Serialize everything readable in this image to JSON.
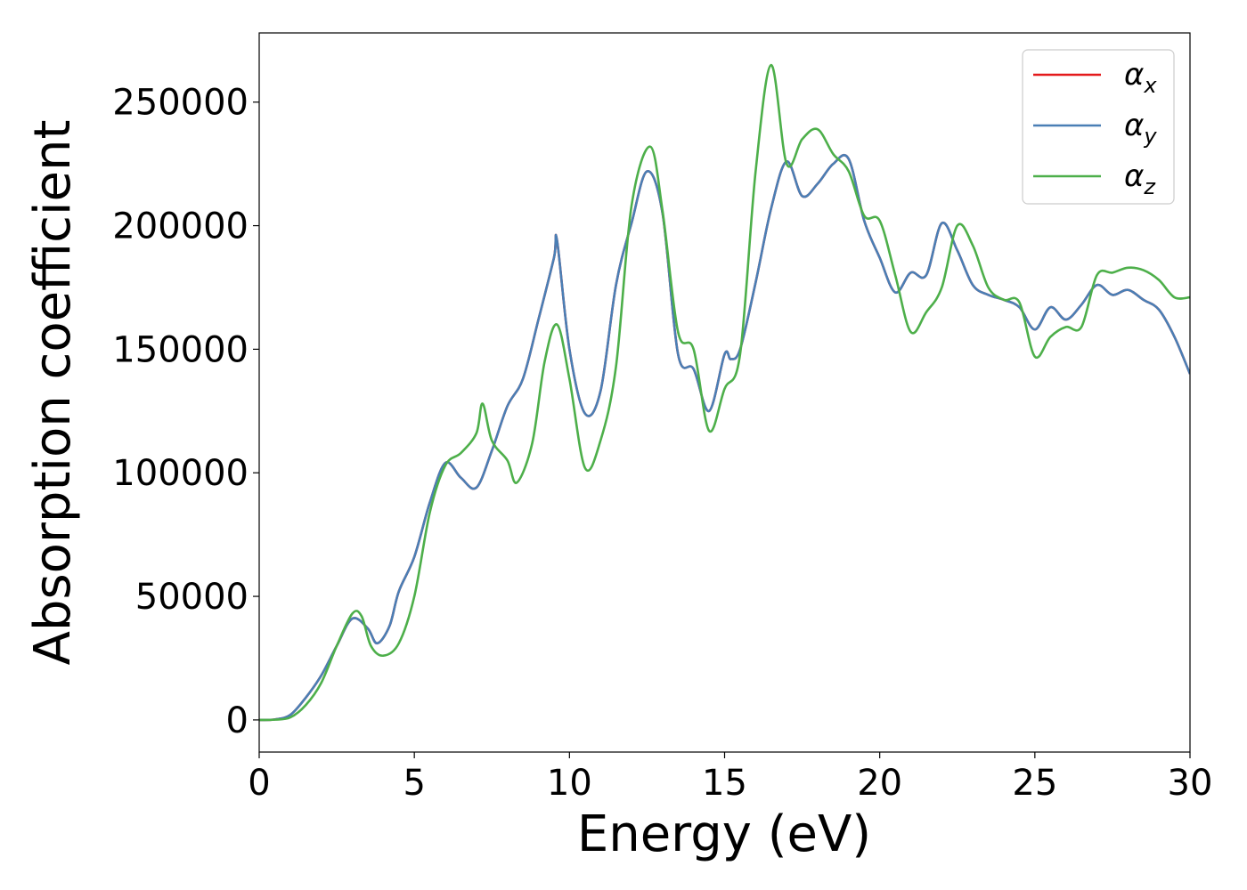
{
  "chart_data": {
    "type": "line",
    "xlabel": "Energy (eV)",
    "ylabel": "Absorption coefficient",
    "xlim": [
      0,
      30
    ],
    "ylim": [
      -13000,
      278000
    ],
    "xticks": [
      "0",
      "5",
      "10",
      "15",
      "20",
      "25",
      "30"
    ],
    "yticks": [
      "0",
      "50000",
      "100000",
      "150000",
      "200000",
      "250000"
    ],
    "grid": false,
    "legend_position": "top-right",
    "series": [
      {
        "name": "x",
        "legend_symbol": "α",
        "color": "#e41a1c",
        "x": [
          0,
          0.5,
          1,
          1.5,
          2,
          2.5,
          3,
          3.5,
          3.8,
          4.2,
          4.5,
          5,
          5.5,
          6,
          6.5,
          7,
          7.5,
          8,
          8.5,
          9,
          9.5,
          9.6,
          10,
          10.5,
          11,
          11.5,
          12,
          12.5,
          13,
          13.5,
          14,
          14.5,
          15,
          15.2,
          15.5,
          16,
          16.5,
          17,
          17.5,
          18,
          18.5,
          19,
          19.5,
          20,
          20.5,
          21,
          21.5,
          22,
          22.5,
          23,
          23.5,
          24,
          24.5,
          25,
          25.5,
          26,
          26.5,
          27,
          27.5,
          28,
          28.5,
          29,
          29.5,
          30
        ],
        "y": [
          0,
          200,
          2000,
          9000,
          18000,
          30000,
          41000,
          37000,
          31000,
          38000,
          52000,
          66000,
          88000,
          104000,
          98000,
          94000,
          109000,
          127000,
          138000,
          162000,
          187000,
          194000,
          150000,
          124000,
          133000,
          176000,
          201000,
          222000,
          205000,
          148000,
          142000,
          125000,
          148000,
          146000,
          150000,
          177000,
          207000,
          226000,
          212000,
          217000,
          225000,
          227000,
          202000,
          187000,
          173000,
          181000,
          180000,
          201000,
          190000,
          176000,
          172000,
          170000,
          167000,
          158000,
          167000,
          162000,
          168000,
          176000,
          172000,
          174000,
          170000,
          166000,
          155000,
          140000
        ]
      },
      {
        "name": "y",
        "legend_symbol": "α",
        "color": "#4a7fb5",
        "x": [
          0,
          0.5,
          1,
          1.5,
          2,
          2.5,
          3,
          3.5,
          3.8,
          4.2,
          4.5,
          5,
          5.5,
          6,
          6.5,
          7,
          7.5,
          8,
          8.5,
          9,
          9.5,
          9.6,
          10,
          10.5,
          11,
          11.5,
          12,
          12.5,
          13,
          13.5,
          14,
          14.5,
          15,
          15.2,
          15.5,
          16,
          16.5,
          17,
          17.5,
          18,
          18.5,
          19,
          19.5,
          20,
          20.5,
          21,
          21.5,
          22,
          22.5,
          23,
          23.5,
          24,
          24.5,
          25,
          25.5,
          26,
          26.5,
          27,
          27.5,
          28,
          28.5,
          29,
          29.5,
          30
        ],
        "y": [
          0,
          200,
          2000,
          9000,
          18000,
          30000,
          41000,
          37000,
          31000,
          38000,
          52000,
          66000,
          88000,
          104000,
          98000,
          94000,
          109000,
          127000,
          138000,
          162000,
          187000,
          194000,
          150000,
          124000,
          133000,
          176000,
          201000,
          222000,
          205000,
          148000,
          142000,
          125000,
          148000,
          146000,
          150000,
          177000,
          207000,
          226000,
          212000,
          217000,
          225000,
          227000,
          202000,
          187000,
          173000,
          181000,
          180000,
          201000,
          190000,
          176000,
          172000,
          170000,
          167000,
          158000,
          167000,
          162000,
          168000,
          176000,
          172000,
          174000,
          170000,
          166000,
          155000,
          140000
        ]
      },
      {
        "name": "z",
        "legend_symbol": "α",
        "color": "#4daf4a",
        "x": [
          0,
          0.5,
          1,
          1.5,
          2,
          2.5,
          3,
          3.3,
          3.6,
          4,
          4.5,
          5,
          5.5,
          6,
          6.5,
          7,
          7.2,
          7.5,
          8,
          8.3,
          8.8,
          9.2,
          9.6,
          10,
          10.5,
          11,
          11.5,
          12,
          12.6,
          13,
          13.5,
          14,
          14.5,
          15,
          15.5,
          16,
          16.5,
          17,
          17.5,
          18,
          18.5,
          19,
          19.5,
          20,
          20.5,
          21,
          21.5,
          22,
          22.5,
          23,
          23.5,
          24,
          24.5,
          25,
          25.5,
          26,
          26.5,
          27,
          27.5,
          28,
          28.5,
          29,
          29.5,
          30
        ],
        "y": [
          0,
          100,
          1000,
          6000,
          15000,
          30000,
          43000,
          42000,
          30000,
          26000,
          31000,
          50000,
          84000,
          103000,
          108000,
          116000,
          128000,
          113000,
          105000,
          96000,
          112000,
          145000,
          160000,
          138000,
          102000,
          113000,
          143000,
          208000,
          232000,
          206000,
          157000,
          150000,
          117000,
          134000,
          148000,
          222000,
          265000,
          225000,
          235000,
          239000,
          229000,
          222000,
          204000,
          202000,
          180000,
          157000,
          165000,
          175000,
          200000,
          192000,
          175000,
          170000,
          169000,
          147000,
          155000,
          159000,
          159000,
          180000,
          181000,
          183000,
          182000,
          178000,
          171000,
          171000
        ]
      }
    ]
  }
}
